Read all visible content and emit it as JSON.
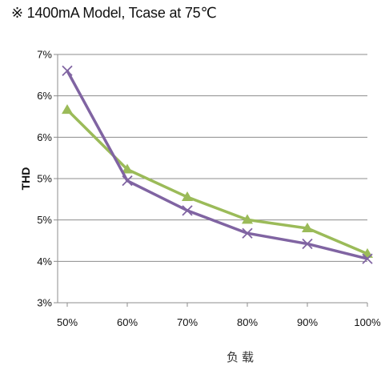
{
  "title": "※ 1400mA Model, Tcase at 75℃",
  "chart_data": {
    "type": "line",
    "title": "※ 1400mA Model, Tcase at 75℃",
    "xlabel": "负载",
    "ylabel": "THD",
    "categories": [
      "50%",
      "60%",
      "70%",
      "80%",
      "90%",
      "100%"
    ],
    "y_tick_labels": [
      "3%",
      "4%",
      "5%",
      "5%",
      "6%",
      "6%",
      "7%"
    ],
    "ylim": [
      3,
      6.5
    ],
    "grid": true,
    "legend": "none",
    "series": [
      {
        "marker": "triangle",
        "color": "#9bbb59",
        "values": [
          5.72,
          4.88,
          4.49,
          4.17,
          4.05,
          3.69
        ]
      },
      {
        "marker": "x",
        "color": "#8064a2",
        "values": [
          6.27,
          4.72,
          4.3,
          3.98,
          3.83,
          3.62
        ]
      }
    ]
  }
}
